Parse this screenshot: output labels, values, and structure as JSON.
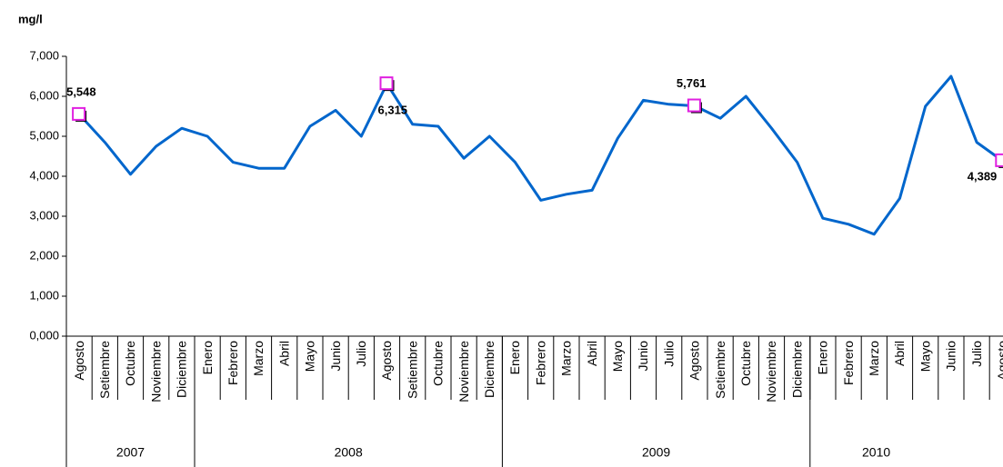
{
  "chart_data": {
    "type": "line",
    "y_label": "mg/l",
    "categories": [
      "Agosto",
      "Setiembre",
      "Octubre",
      "Noviembre",
      "Diciembre",
      "Enero",
      "Febrero",
      "Marzo",
      "Abril",
      "Mayo",
      "Junio",
      "Julio",
      "Agosto",
      "Setiembre",
      "Octubre",
      "Noviembre",
      "Diciembre",
      "Enero",
      "Febrero",
      "Marzo",
      "Abril",
      "Mayo",
      "Junio",
      "Julio",
      "Agosto",
      "Setiembre",
      "Octubre",
      "Noviembre",
      "Diciembre",
      "Enero",
      "Febrero",
      "Marzo",
      "Abril",
      "Mayo",
      "Junio",
      "Julio",
      "Agosto"
    ],
    "groups": [
      {
        "name": "2007",
        "size": 5
      },
      {
        "name": "2008",
        "size": 12
      },
      {
        "name": "2009",
        "size": 12
      },
      {
        "name": "2010",
        "size": 8
      }
    ],
    "values": [
      5548,
      4850,
      4050,
      4750,
      5200,
      5000,
      4350,
      4200,
      4200,
      5250,
      5650,
      5000,
      6315,
      5300,
      5250,
      4450,
      5000,
      4350,
      3400,
      3550,
      3650,
      4950,
      5900,
      5800,
      5761,
      5450,
      6000,
      5200,
      4350,
      2950,
      2800,
      2550,
      3450,
      5750,
      6500,
      4850,
      4389
    ],
    "value_labels": [
      "5,548",
      null,
      null,
      null,
      null,
      null,
      null,
      null,
      null,
      null,
      null,
      null,
      "6,315",
      null,
      null,
      null,
      null,
      null,
      null,
      null,
      null,
      null,
      null,
      null,
      "5,761",
      null,
      null,
      null,
      null,
      null,
      null,
      null,
      null,
      null,
      null,
      null,
      "4,389"
    ],
    "color": "#0066cc",
    "marker_color": "#e020e0",
    "ylim": [
      0,
      7000
    ],
    "yticks": [
      {
        "value": 0,
        "label": "0,000"
      },
      {
        "value": 1000,
        "label": "1,000"
      },
      {
        "value": 2000,
        "label": "2,000"
      },
      {
        "value": 3000,
        "label": "3,000"
      },
      {
        "value": 4000,
        "label": "4,000"
      },
      {
        "value": 5000,
        "label": "5,000"
      },
      {
        "value": 6000,
        "label": "6,000"
      },
      {
        "value": 7000,
        "label": "7,000"
      }
    ],
    "grid": false
  }
}
